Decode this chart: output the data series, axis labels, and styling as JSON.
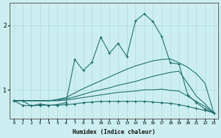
{
  "xlabel": "Humidex (Indice chaleur)",
  "ylabel": "",
  "bg_color": "#cceef0",
  "line_color": "#1a6b6b",
  "grid_color": "#b0dde0",
  "xlim": [
    -0.5,
    23.5
  ],
  "ylim": [
    0.55,
    2.35
  ],
  "yticks": [
    1,
    2
  ],
  "xticks": [
    0,
    1,
    2,
    3,
    4,
    5,
    6,
    7,
    8,
    9,
    10,
    11,
    12,
    13,
    14,
    15,
    16,
    17,
    18,
    19,
    20,
    21,
    22,
    23
  ],
  "lines": [
    {
      "x": [
        0,
        1,
        2,
        3,
        4,
        5,
        6,
        7,
        8,
        9,
        10,
        11,
        12,
        13,
        14,
        15,
        16,
        17,
        18,
        19,
        20,
        21,
        22,
        23
      ],
      "y": [
        0.83,
        0.83,
        0.75,
        0.78,
        0.76,
        0.77,
        0.8,
        1.47,
        1.3,
        1.43,
        1.82,
        1.57,
        1.72,
        1.52,
        2.07,
        2.18,
        2.06,
        1.83,
        1.42,
        1.4,
        0.92,
        0.8,
        0.7,
        0.64
      ],
      "has_markers": true
    },
    {
      "x": [
        0,
        1,
        2,
        3,
        4,
        5,
        6,
        7,
        8,
        9,
        10,
        11,
        12,
        13,
        14,
        15,
        16,
        17,
        18,
        19,
        20,
        21,
        22,
        23
      ],
      "y": [
        0.83,
        0.83,
        0.83,
        0.83,
        0.83,
        0.85,
        0.88,
        0.95,
        1.02,
        1.08,
        1.14,
        1.2,
        1.26,
        1.32,
        1.37,
        1.41,
        1.45,
        1.47,
        1.48,
        1.42,
        1.35,
        1.25,
        1.1,
        0.64
      ],
      "has_markers": false
    },
    {
      "x": [
        0,
        1,
        2,
        3,
        4,
        5,
        6,
        7,
        8,
        9,
        10,
        11,
        12,
        13,
        14,
        15,
        16,
        17,
        18,
        19,
        20,
        21,
        22,
        23
      ],
      "y": [
        0.83,
        0.83,
        0.83,
        0.83,
        0.83,
        0.84,
        0.86,
        0.89,
        0.93,
        0.97,
        1.0,
        1.03,
        1.07,
        1.1,
        1.13,
        1.17,
        1.21,
        1.24,
        1.27,
        1.29,
        1.1,
        0.9,
        0.78,
        0.64
      ],
      "has_markers": false
    },
    {
      "x": [
        0,
        1,
        2,
        3,
        4,
        5,
        6,
        7,
        8,
        9,
        10,
        11,
        12,
        13,
        14,
        15,
        16,
        17,
        18,
        19,
        20,
        21,
        22,
        23
      ],
      "y": [
        0.83,
        0.83,
        0.83,
        0.83,
        0.83,
        0.83,
        0.84,
        0.86,
        0.88,
        0.9,
        0.92,
        0.94,
        0.96,
        0.97,
        0.98,
        1.0,
        1.0,
        1.01,
        0.99,
        0.98,
        0.9,
        0.82,
        0.74,
        0.64
      ],
      "has_markers": false
    },
    {
      "x": [
        0,
        1,
        2,
        3,
        4,
        5,
        6,
        7,
        8,
        9,
        10,
        11,
        12,
        13,
        14,
        15,
        16,
        17,
        18,
        19,
        20,
        21,
        22,
        23
      ],
      "y": [
        0.83,
        0.76,
        0.75,
        0.76,
        0.76,
        0.76,
        0.77,
        0.78,
        0.8,
        0.81,
        0.82,
        0.82,
        0.82,
        0.82,
        0.82,
        0.82,
        0.81,
        0.8,
        0.79,
        0.77,
        0.74,
        0.71,
        0.68,
        0.64
      ],
      "has_markers": true
    }
  ]
}
